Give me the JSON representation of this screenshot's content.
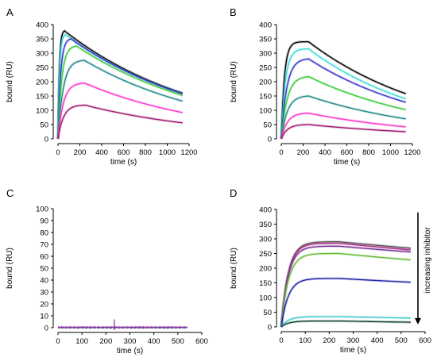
{
  "chart_data": [
    {
      "panel": "A",
      "type": "line",
      "xlabel": "time (s)",
      "ylabel": "bound (RU)",
      "xlim": [
        0,
        1200
      ],
      "ylim": [
        0,
        400
      ],
      "xticks": [
        0,
        200,
        400,
        600,
        800,
        1000,
        1200
      ],
      "yticks": [
        0,
        50,
        100,
        150,
        200,
        250,
        300,
        350,
        400
      ],
      "grid": false,
      "injection_end": 250,
      "dissociation_end": 1140,
      "series": [
        {
          "color": "#000000",
          "peak": 378,
          "peak_time": 60,
          "end": 160
        },
        {
          "color": "#33dddd",
          "peak": 365,
          "peak_time": 70,
          "end": 158
        },
        {
          "color": "#3333cc",
          "peak": 350,
          "peak_time": 120,
          "end": 158
        },
        {
          "color": "#33cc33",
          "peak": 325,
          "peak_time": 170,
          "end": 152
        },
        {
          "color": "#228888",
          "peak": 275,
          "peak_time": 240,
          "end": 132
        },
        {
          "color": "#ff33cc",
          "peak": 195,
          "peak_time": 245,
          "end": 92
        },
        {
          "color": "#a0186e",
          "peak": 118,
          "peak_time": 250,
          "end": 56
        }
      ]
    },
    {
      "panel": "B",
      "type": "line",
      "xlabel": "time (s)",
      "ylabel": "bound (RU)",
      "xlim": [
        0,
        1200
      ],
      "ylim": [
        0,
        400
      ],
      "xticks": [
        0,
        200,
        400,
        600,
        800,
        1000,
        1200
      ],
      "yticks": [
        0,
        50,
        100,
        150,
        200,
        250,
        300,
        350,
        400
      ],
      "grid": false,
      "injection_end": 250,
      "dissociation_end": 1140,
      "series": [
        {
          "color": "#000000",
          "peak": 340,
          "peak_time": 130,
          "end": 158
        },
        {
          "color": "#33dddd",
          "peak": 315,
          "peak_time": 170,
          "end": 140
        },
        {
          "color": "#3333cc",
          "peak": 280,
          "peak_time": 230,
          "end": 128
        },
        {
          "color": "#33cc33",
          "peak": 218,
          "peak_time": 245,
          "end": 102
        },
        {
          "color": "#228888",
          "peak": 150,
          "peak_time": 250,
          "end": 70
        },
        {
          "color": "#ff33cc",
          "peak": 90,
          "peak_time": 250,
          "end": 42
        },
        {
          "color": "#a0186e",
          "peak": 50,
          "peak_time": 250,
          "end": 25
        }
      ]
    },
    {
      "panel": "C",
      "type": "line",
      "xlabel": "time (s)",
      "ylabel": "bound (RU)",
      "xlim": [
        0,
        600
      ],
      "ylim": [
        0,
        100
      ],
      "xticks": [
        0,
        100,
        200,
        300,
        400,
        500,
        600
      ],
      "yticks": [
        0,
        10,
        20,
        30,
        40,
        50,
        60,
        70,
        80,
        90,
        100
      ],
      "grid": false,
      "series": [
        {
          "color": "#3333cc",
          "baseline": 0.3
        },
        {
          "color": "#ff33cc",
          "baseline": 0.6
        },
        {
          "color": "#228888",
          "baseline": 0.1
        },
        {
          "color": "#7a3399",
          "baseline": -0.1
        }
      ],
      "spike": {
        "x": 235,
        "y_min": -2,
        "y_max": 7,
        "color": "#7a3399"
      }
    },
    {
      "panel": "D",
      "type": "line",
      "xlabel": "time (s)",
      "ylabel": "bound (RU)",
      "xlim": [
        0,
        600
      ],
      "ylim": [
        0,
        400
      ],
      "xticks": [
        0,
        100,
        200,
        300,
        400,
        500,
        600
      ],
      "yticks": [
        0,
        50,
        100,
        150,
        200,
        250,
        300,
        350,
        400
      ],
      "grid": false,
      "injection_end": 240,
      "dissociation_end": 540,
      "annotation": "increasing inhibitor",
      "series": [
        {
          "color": "#555555",
          "peak": 290,
          "end": 268
        },
        {
          "color": "#b02a8a",
          "peak": 285,
          "end": 262
        },
        {
          "color": "#7a3399",
          "peak": 275,
          "end": 255
        },
        {
          "color": "#66bb33",
          "peak": 250,
          "end": 228
        },
        {
          "color": "#2222aa",
          "peak": 165,
          "end": 152
        },
        {
          "color": "#44cccc",
          "peak": 35,
          "end": 30
        },
        {
          "color": "#114433",
          "peak": 20,
          "end": 16
        }
      ]
    }
  ]
}
